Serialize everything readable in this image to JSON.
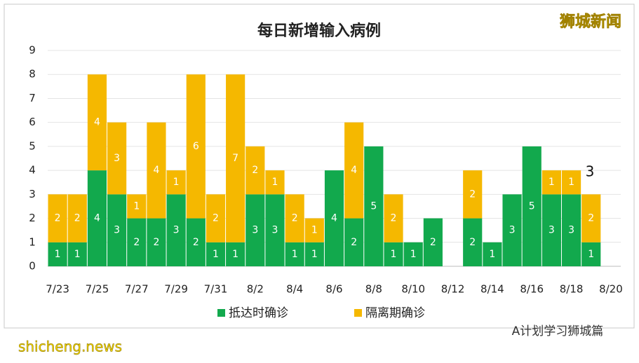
{
  "chart_data": {
    "type": "stacked-bar",
    "title": "每日新增输入病例",
    "categories": [
      "7/23",
      null,
      "7/25",
      null,
      "7/27",
      null,
      "7/29",
      null,
      "7/31",
      null,
      "8/2",
      null,
      "8/4",
      null,
      "8/6",
      null,
      "8/8",
      null,
      "8/10",
      null,
      "8/12",
      null,
      "8/14",
      null,
      "8/16",
      null,
      "8/18",
      null,
      "8/20"
    ],
    "series": [
      {
        "name": "抵达时确诊",
        "color": "#12a94d",
        "values": [
          1,
          1,
          4,
          3,
          2,
          2,
          3,
          2,
          1,
          1,
          3,
          3,
          1,
          1,
          4,
          2,
          5,
          1,
          1,
          2,
          null,
          2,
          1,
          3,
          5,
          3,
          3,
          1,
          null
        ]
      },
      {
        "name": "隔离期确诊",
        "color": "#f5b800",
        "values": [
          2,
          2,
          4,
          3,
          1,
          4,
          1,
          6,
          2,
          7,
          2,
          1,
          2,
          1,
          null,
          4,
          null,
          2,
          null,
          null,
          null,
          2,
          null,
          null,
          null,
          1,
          1,
          2,
          null
        ]
      }
    ],
    "ylim": [
      0,
      9
    ],
    "yticks": [
      0,
      1,
      2,
      3,
      4,
      5,
      6,
      7,
      8,
      9
    ],
    "grid": true,
    "legend": "bottom",
    "annotation": "3"
  },
  "watermarks": {
    "brand": "狮城新闻",
    "account": "A计划学习狮城篇",
    "site": "shicheng.news"
  }
}
